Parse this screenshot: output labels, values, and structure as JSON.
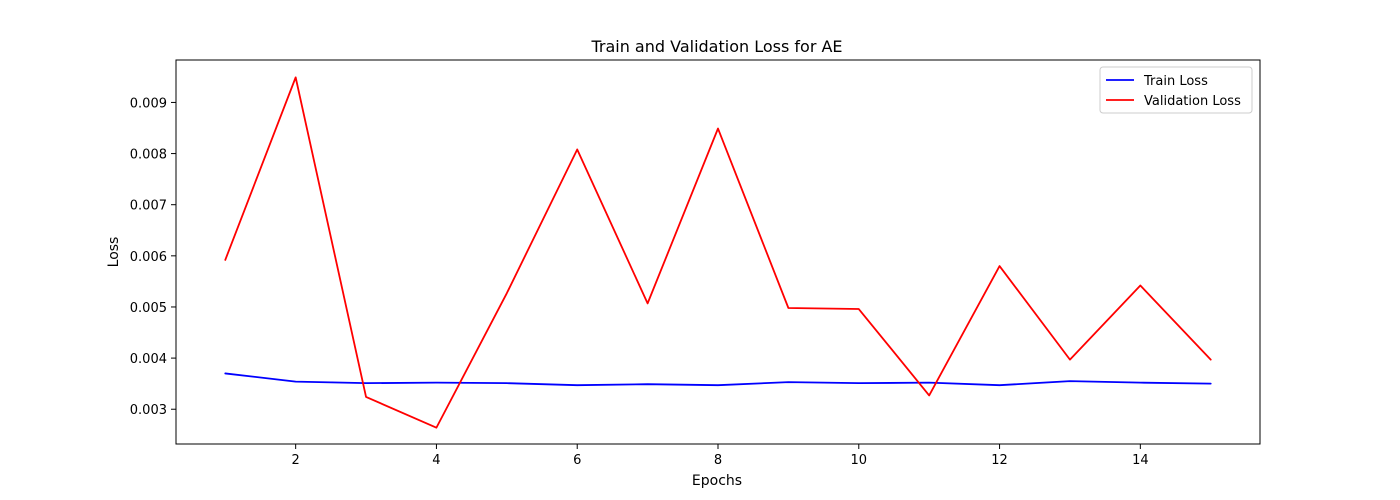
{
  "chart_data": {
    "type": "line",
    "title": "Train and Validation Loss for AE",
    "xlabel": "Epochs",
    "ylabel": "Loss",
    "xlim": [
      0.3,
      15.7
    ],
    "ylim": [
      0.00232,
      0.00983
    ],
    "xticks": [
      2,
      4,
      6,
      8,
      10,
      12,
      14
    ],
    "xtick_labels": [
      "2",
      "4",
      "6",
      "8",
      "10",
      "12",
      "14"
    ],
    "yticks": [
      0.003,
      0.004,
      0.005,
      0.006,
      0.007,
      0.008,
      0.009
    ],
    "ytick_labels": [
      "0.003",
      "0.004",
      "0.005",
      "0.006",
      "0.007",
      "0.008",
      "0.009"
    ],
    "grid": false,
    "legend_position": "top-right",
    "x": [
      1,
      2,
      3,
      4,
      5,
      6,
      7,
      8,
      9,
      10,
      11,
      12,
      13,
      14,
      15
    ],
    "series": [
      {
        "name": "Train Loss",
        "color": "#0000ff",
        "values": [
          0.0037,
          0.00354,
          0.00351,
          0.00352,
          0.00351,
          0.00347,
          0.00349,
          0.00347,
          0.00353,
          0.00351,
          0.00352,
          0.00347,
          0.00355,
          0.00352,
          0.0035
        ]
      },
      {
        "name": "Validation Loss",
        "color": "#ff0000",
        "values": [
          0.00592,
          0.00949,
          0.00324,
          0.00264,
          0.00527,
          0.00808,
          0.00507,
          0.00849,
          0.00498,
          0.00496,
          0.00327,
          0.0058,
          0.00397,
          0.00542,
          0.00397
        ]
      }
    ]
  }
}
